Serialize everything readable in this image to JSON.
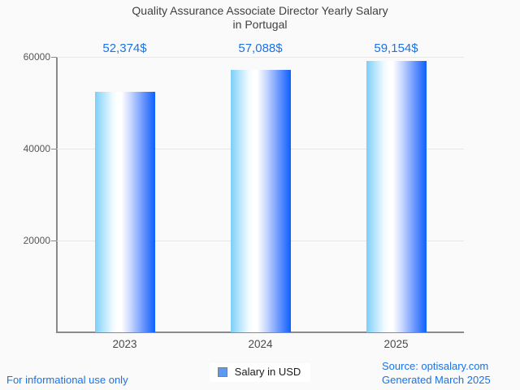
{
  "title": {
    "line1": "Quality Assurance Associate Director Yearly Salary",
    "line2": "in Portugal"
  },
  "chart_data": {
    "type": "bar",
    "title": "Quality Assurance Associate Director Yearly Salary in Portugal",
    "categories": [
      "2023",
      "2024",
      "2025"
    ],
    "values": [
      52374,
      57088,
      59154
    ],
    "value_labels": [
      "52,374$",
      "57,088$",
      "59,154$"
    ],
    "series_name": "Salary in USD",
    "xlabel": "",
    "ylabel": "",
    "ylim": [
      0,
      60000
    ],
    "yticks": [
      20000,
      40000,
      60000
    ],
    "grid": true,
    "legend_position": "bottom",
    "colors": {
      "bar_gradient_left": "#7ccff9",
      "bar_gradient_mid": "#ffffff",
      "bar_gradient_right": "#0c62fc",
      "value_label": "#1a73e8",
      "axis": "#8a8a8a",
      "gridline": "#e7e7e7",
      "background": "#fafafa"
    }
  },
  "legend": {
    "label": "Salary in USD",
    "swatch_fill": "#5b9af0",
    "swatch_border": "#7d8087"
  },
  "footer": {
    "left": "For informational use only",
    "source": "Source: optisalary.com",
    "generated": "Generated March 2025",
    "link_color": "#1a73e8"
  }
}
